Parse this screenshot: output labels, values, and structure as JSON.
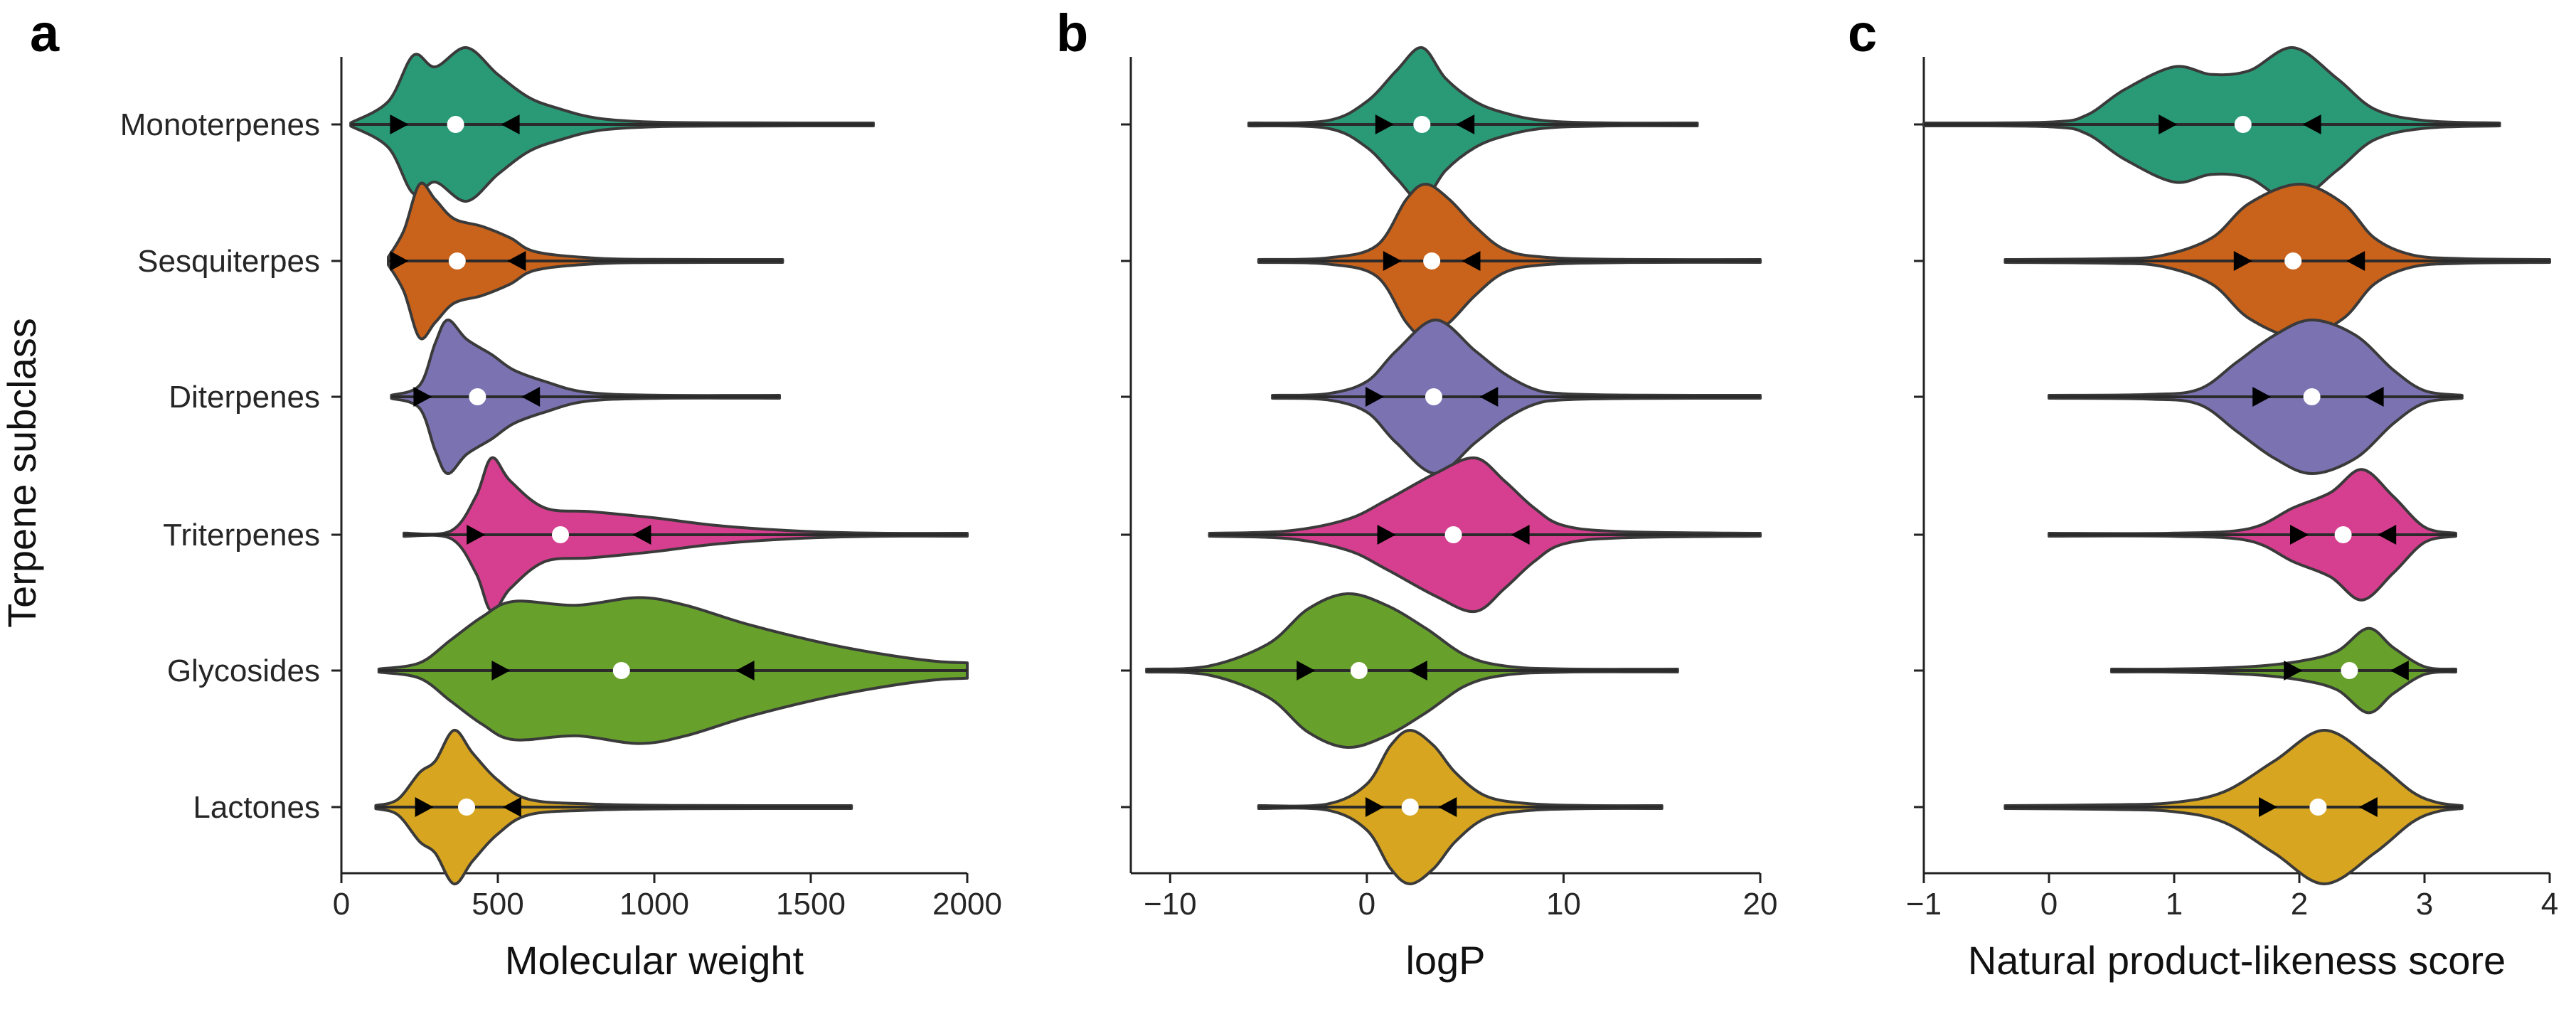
{
  "ylabel": "Terpene subclass",
  "categories": [
    "Monoterpenes",
    "Sesquiterpes",
    "Diterpenes",
    "Triterpenes",
    "Glycosides",
    "Lactones"
  ],
  "colors": [
    "#2a9a76",
    "#c9621a",
    "#7b72b2",
    "#d63f8f",
    "#67a12c",
    "#d7a520"
  ],
  "chart_data": [
    {
      "type": "violin",
      "panel_label": "a",
      "xlabel": "Molecular weight",
      "ylabel": "Terpene subclass",
      "xlim": [
        0,
        2000
      ],
      "xticks": [
        0,
        500,
        1000,
        1500,
        2000
      ],
      "xtick_labels": [
        "0",
        "500",
        "1000",
        "1500",
        "2000"
      ],
      "categories": [
        "Monoterpenes",
        "Sesquiterpes",
        "Diterpenes",
        "Triterpenes",
        "Glycosides",
        "Lactones"
      ],
      "series": [
        {
          "name": "Monoterpenes",
          "min": 30,
          "max": 1700,
          "mean": 365,
          "lower_marker": 185,
          "upper_marker": 540,
          "density": [
            [
              30,
              0.02
            ],
            [
              150,
              0.3
            ],
            [
              230,
              0.9
            ],
            [
              300,
              0.75
            ],
            [
              400,
              1.0
            ],
            [
              500,
              0.65
            ],
            [
              600,
              0.35
            ],
            [
              700,
              0.2
            ],
            [
              820,
              0.08
            ],
            [
              1000,
              0.03
            ],
            [
              1300,
              0.02
            ],
            [
              1700,
              0.01
            ]
          ]
        },
        {
          "name": "Sesquiterpes",
          "min": 150,
          "max": 1410,
          "mean": 370,
          "lower_marker": 185,
          "upper_marker": 560,
          "density": [
            [
              150,
              0.05
            ],
            [
              200,
              0.4
            ],
            [
              250,
              1.0
            ],
            [
              300,
              0.8
            ],
            [
              360,
              0.55
            ],
            [
              450,
              0.45
            ],
            [
              540,
              0.3
            ],
            [
              620,
              0.12
            ],
            [
              800,
              0.04
            ],
            [
              1000,
              0.02
            ],
            [
              1410,
              0.01
            ]
          ]
        },
        {
          "name": "Diterpenes",
          "min": 160,
          "max": 1400,
          "mean": 435,
          "lower_marker": 260,
          "upper_marker": 605,
          "density": [
            [
              160,
              0.02
            ],
            [
              250,
              0.15
            ],
            [
              300,
              0.7
            ],
            [
              340,
              1.0
            ],
            [
              400,
              0.75
            ],
            [
              480,
              0.55
            ],
            [
              550,
              0.35
            ],
            [
              650,
              0.2
            ],
            [
              780,
              0.06
            ],
            [
              1000,
              0.02
            ],
            [
              1400,
              0.01
            ]
          ]
        },
        {
          "name": "Triterpenes",
          "min": 200,
          "max": 2000,
          "mean": 700,
          "lower_marker": 430,
          "upper_marker": 960,
          "density": [
            [
              200,
              0.02
            ],
            [
              350,
              0.05
            ],
            [
              430,
              0.5
            ],
            [
              480,
              1.0
            ],
            [
              540,
              0.7
            ],
            [
              650,
              0.35
            ],
            [
              800,
              0.3
            ],
            [
              1000,
              0.22
            ],
            [
              1200,
              0.12
            ],
            [
              1450,
              0.05
            ],
            [
              1700,
              0.02
            ],
            [
              2000,
              0.01
            ]
          ]
        },
        {
          "name": "Glycosides",
          "min": 120,
          "max": 2000,
          "mean": 895,
          "lower_marker": 510,
          "upper_marker": 1290,
          "density": [
            [
              120,
              0.02
            ],
            [
              250,
              0.1
            ],
            [
              350,
              0.4
            ],
            [
              450,
              0.7
            ],
            [
              550,
              0.9
            ],
            [
              750,
              0.85
            ],
            [
              950,
              0.95
            ],
            [
              1100,
              0.85
            ],
            [
              1300,
              0.6
            ],
            [
              1550,
              0.35
            ],
            [
              1750,
              0.2
            ],
            [
              1900,
              0.12
            ],
            [
              2000,
              0.1
            ]
          ]
        },
        {
          "name": "Lactones",
          "min": 110,
          "max": 1630,
          "mean": 400,
          "lower_marker": 265,
          "upper_marker": 545,
          "density": [
            [
              110,
              0.02
            ],
            [
              180,
              0.1
            ],
            [
              250,
              0.45
            ],
            [
              300,
              0.6
            ],
            [
              360,
              1.0
            ],
            [
              420,
              0.7
            ],
            [
              500,
              0.35
            ],
            [
              600,
              0.1
            ],
            [
              800,
              0.04
            ],
            [
              1100,
              0.02
            ],
            [
              1630,
              0.01
            ]
          ]
        }
      ]
    },
    {
      "type": "violin",
      "panel_label": "b",
      "xlabel": "logP",
      "xlim": [
        -12,
        20
      ],
      "xticks": [
        -10,
        0,
        10,
        20
      ],
      "xtick_labels": [
        "−10",
        "0",
        "10",
        "20"
      ],
      "categories": [
        "Monoterpenes",
        "Sesquiterpes",
        "Diterpenes",
        "Triterpenes",
        "Glycosides",
        "Lactones"
      ],
      "series": [
        {
          "name": "Monoterpenes",
          "min": -6,
          "max": 16.8,
          "mean": 2.8,
          "lower_marker": 0.9,
          "upper_marker": 5.0,
          "density": [
            [
              -6,
              0.01
            ],
            [
              -2,
              0.05
            ],
            [
              0,
              0.3
            ],
            [
              1.5,
              0.7
            ],
            [
              2.8,
              1.0
            ],
            [
              4,
              0.6
            ],
            [
              5.5,
              0.3
            ],
            [
              7,
              0.15
            ],
            [
              9,
              0.05
            ],
            [
              12,
              0.02
            ],
            [
              16.8,
              0.01
            ]
          ]
        },
        {
          "name": "Sesquiterpes",
          "min": -5.5,
          "max": 20,
          "mean": 3.3,
          "lower_marker": 1.3,
          "upper_marker": 5.3,
          "density": [
            [
              -5.5,
              0.01
            ],
            [
              -2,
              0.04
            ],
            [
              0.5,
              0.2
            ],
            [
              2,
              0.8
            ],
            [
              3,
              1.0
            ],
            [
              4.2,
              0.8
            ],
            [
              5.5,
              0.45
            ],
            [
              7,
              0.15
            ],
            [
              9,
              0.05
            ],
            [
              13,
              0.02
            ],
            [
              20,
              0.01
            ]
          ]
        },
        {
          "name": "Diterpenes",
          "min": -4.8,
          "max": 20,
          "mean": 3.4,
          "lower_marker": 0.4,
          "upper_marker": 6.2,
          "density": [
            [
              -4.8,
              0.01
            ],
            [
              -2,
              0.04
            ],
            [
              0,
              0.2
            ],
            [
              1.5,
              0.6
            ],
            [
              3.5,
              1.0
            ],
            [
              5.5,
              0.6
            ],
            [
              7,
              0.3
            ],
            [
              8.5,
              0.1
            ],
            [
              10,
              0.04
            ],
            [
              14,
              0.02
            ],
            [
              20,
              0.01
            ]
          ]
        },
        {
          "name": "Triterpenes",
          "min": -8,
          "max": 20,
          "mean": 4.4,
          "lower_marker": 1.0,
          "upper_marker": 7.8,
          "density": [
            [
              -8,
              0.01
            ],
            [
              -4,
              0.05
            ],
            [
              -1,
              0.2
            ],
            [
              1,
              0.45
            ],
            [
              3.5,
              0.8
            ],
            [
              5.5,
              1.0
            ],
            [
              7,
              0.7
            ],
            [
              8.5,
              0.35
            ],
            [
              10,
              0.12
            ],
            [
              13,
              0.04
            ],
            [
              20,
              0.01
            ]
          ]
        },
        {
          "name": "Glycosides",
          "min": -11.2,
          "max": 15.8,
          "mean": -0.4,
          "lower_marker": -3.1,
          "upper_marker": 2.6,
          "density": [
            [
              -11.2,
              0.01
            ],
            [
              -8,
              0.06
            ],
            [
              -5,
              0.35
            ],
            [
              -3,
              0.8
            ],
            [
              -1,
              1.0
            ],
            [
              1,
              0.85
            ],
            [
              3,
              0.55
            ],
            [
              5,
              0.2
            ],
            [
              7,
              0.06
            ],
            [
              10,
              0.02
            ],
            [
              15.8,
              0.01
            ]
          ]
        },
        {
          "name": "Lactones",
          "min": -5.5,
          "max": 15,
          "mean": 2.2,
          "lower_marker": 0.4,
          "upper_marker": 4.1,
          "density": [
            [
              -5.5,
              0.01
            ],
            [
              -2,
              0.04
            ],
            [
              0,
              0.3
            ],
            [
              1.2,
              0.8
            ],
            [
              2.2,
              1.0
            ],
            [
              3.4,
              0.8
            ],
            [
              4.5,
              0.45
            ],
            [
              6,
              0.15
            ],
            [
              8,
              0.05
            ],
            [
              11,
              0.02
            ],
            [
              15,
              0.01
            ]
          ]
        }
      ]
    },
    {
      "type": "violin",
      "panel_label": "c",
      "xlabel": "Natural product-likeness score",
      "xlim": [
        -1,
        4
      ],
      "xticks": [
        -1,
        0,
        1,
        2,
        3,
        4
      ],
      "xtick_labels": [
        "−1",
        "0",
        "1",
        "2",
        "3",
        "4"
      ],
      "categories": [
        "Monoterpenes",
        "Sesquiterpes",
        "Diterpenes",
        "Triterpenes",
        "Glycosides",
        "Lactones"
      ],
      "series": [
        {
          "name": "Monoterpenes",
          "min": -1,
          "max": 3.6,
          "mean": 1.55,
          "lower_marker": 0.95,
          "upper_marker": 2.1,
          "density": [
            [
              -1,
              0.01
            ],
            [
              0,
              0.03
            ],
            [
              0.3,
              0.12
            ],
            [
              0.6,
              0.45
            ],
            [
              1.0,
              0.75
            ],
            [
              1.3,
              0.65
            ],
            [
              1.6,
              0.7
            ],
            [
              1.95,
              1.0
            ],
            [
              2.3,
              0.6
            ],
            [
              2.6,
              0.2
            ],
            [
              3.0,
              0.05
            ],
            [
              3.6,
              0.01
            ]
          ]
        },
        {
          "name": "Sesquiterpes",
          "min": -0.35,
          "max": 4,
          "mean": 1.95,
          "lower_marker": 1.55,
          "upper_marker": 2.45,
          "density": [
            [
              -0.35,
              0.01
            ],
            [
              0.5,
              0.03
            ],
            [
              0.9,
              0.07
            ],
            [
              1.3,
              0.3
            ],
            [
              1.6,
              0.75
            ],
            [
              2.0,
              1.0
            ],
            [
              2.35,
              0.75
            ],
            [
              2.6,
              0.3
            ],
            [
              2.9,
              0.08
            ],
            [
              3.3,
              0.03
            ],
            [
              4,
              0.01
            ]
          ]
        },
        {
          "name": "Diterpenes",
          "min": 0,
          "max": 3.3,
          "mean": 2.1,
          "lower_marker": 1.7,
          "upper_marker": 2.6,
          "density": [
            [
              0,
              0.01
            ],
            [
              0.8,
              0.03
            ],
            [
              1.2,
              0.1
            ],
            [
              1.5,
              0.45
            ],
            [
              1.8,
              0.8
            ],
            [
              2.1,
              1.0
            ],
            [
              2.45,
              0.8
            ],
            [
              2.75,
              0.35
            ],
            [
              3.0,
              0.08
            ],
            [
              3.3,
              0.01
            ]
          ]
        },
        {
          "name": "Triterpenes",
          "min": 0,
          "max": 3.25,
          "mean": 2.35,
          "lower_marker": 2.0,
          "upper_marker": 2.7,
          "density": [
            [
              0,
              0.01
            ],
            [
              1.0,
              0.02
            ],
            [
              1.6,
              0.08
            ],
            [
              1.95,
              0.35
            ],
            [
              2.25,
              0.55
            ],
            [
              2.5,
              0.85
            ],
            [
              2.75,
              0.5
            ],
            [
              3.0,
              0.1
            ],
            [
              3.25,
              0.01
            ]
          ]
        },
        {
          "name": "Glycosides",
          "min": 0.5,
          "max": 3.25,
          "mean": 2.4,
          "lower_marker": 1.95,
          "upper_marker": 2.8,
          "density": [
            [
              0.5,
              0.01
            ],
            [
              1.0,
              0.02
            ],
            [
              1.6,
              0.05
            ],
            [
              2.0,
              0.12
            ],
            [
              2.3,
              0.25
            ],
            [
              2.55,
              0.55
            ],
            [
              2.75,
              0.3
            ],
            [
              3.0,
              0.05
            ],
            [
              3.25,
              0.01
            ]
          ]
        },
        {
          "name": "Lactones",
          "min": -0.35,
          "max": 3.3,
          "mean": 2.15,
          "lower_marker": 1.75,
          "upper_marker": 2.55,
          "density": [
            [
              -0.35,
              0.01
            ],
            [
              0.5,
              0.03
            ],
            [
              1.0,
              0.06
            ],
            [
              1.4,
              0.2
            ],
            [
              1.8,
              0.6
            ],
            [
              2.2,
              1.0
            ],
            [
              2.6,
              0.6
            ],
            [
              2.9,
              0.2
            ],
            [
              3.1,
              0.06
            ],
            [
              3.3,
              0.01
            ]
          ]
        }
      ]
    }
  ]
}
